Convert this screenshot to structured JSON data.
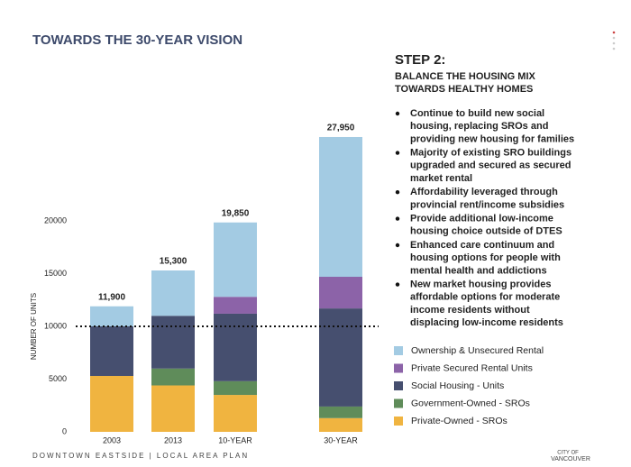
{
  "chart_data": {
    "type": "stacked_bar",
    "title": "TOWARDS THE 30-YEAR VISION",
    "ylabel": "NUMBER OF UNITS",
    "categories": [
      "2003",
      "2013",
      "10-YEAR",
      "30-YEAR"
    ],
    "series": [
      {
        "name": "Private-Owned - SROs",
        "color": "#f0b440",
        "values": [
          5300,
          4400,
          3500,
          1300
        ]
      },
      {
        "name": "Government-Owned - SROs",
        "color": "#5f8c5a",
        "values": [
          0,
          1600,
          1300,
          1100
        ]
      },
      {
        "name": "Social Housing - Units",
        "color": "#464f6f",
        "values": [
          4700,
          5000,
          6400,
          9300
        ]
      },
      {
        "name": "Private Secured Rental Units",
        "color": "#8c63a8",
        "values": [
          0,
          0,
          1600,
          3000
        ]
      },
      {
        "name": "Ownership & Unsecured Rental",
        "color": "#a3cbe3",
        "values": [
          1900,
          4300,
          7050,
          13250
        ]
      }
    ],
    "totals": [
      11900,
      15300,
      19850,
      27950
    ],
    "total_labels": [
      "11,900",
      "15,300",
      "19,850",
      "27,950"
    ],
    "reference_line": 10000,
    "ylim": [
      0,
      30000
    ],
    "yticks": [
      0,
      5000,
      10000,
      15000,
      20000
    ],
    "step": {
      "heading": "STEP 2:",
      "subheading": [
        "BALANCE THE HOUSING MIX",
        "TOWARDS HEALTHY HOMES"
      ],
      "bullets": [
        [
          "Continue to build new social",
          "housing, replacing SROs and",
          "providing new housing for families"
        ],
        [
          "Majority of existing SRO buildings",
          "upgraded and secured as secured",
          "market rental"
        ],
        [
          "Affordability leveraged through",
          "provincial rent/income subsidies"
        ],
        [
          "Provide additional low-income",
          "housing choice outside of DTES"
        ],
        [
          "Enhanced care continuum and",
          "housing options for people with",
          "mental health and addictions"
        ],
        [
          "New market housing provides",
          "affordable options for moderate",
          "income residents without",
          "displacing low-income residents"
        ]
      ]
    },
    "footer": "DOWNTOWN EASTSIDE | LOCAL AREA PLAN",
    "logo": [
      "CITY OF",
      "VANCOUVER"
    ]
  }
}
